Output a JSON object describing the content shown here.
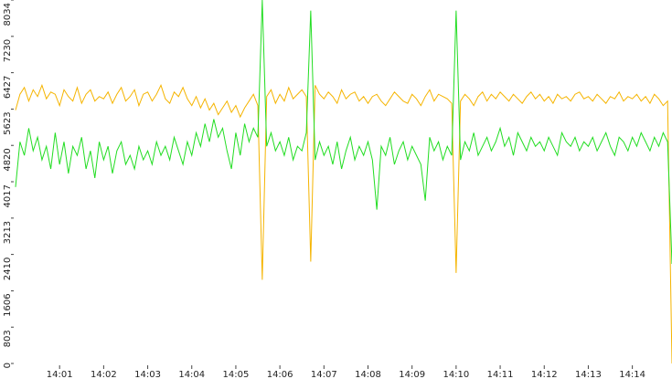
{
  "chart_data": {
    "type": "line",
    "x": [
      0,
      0.1,
      0.2,
      0.3,
      0.4,
      0.5,
      0.6,
      0.7,
      0.8,
      0.9,
      1,
      1.1,
      1.2,
      1.3,
      1.4,
      1.5,
      1.6,
      1.7,
      1.8,
      1.9,
      2,
      2.1,
      2.2,
      2.3,
      2.4,
      2.5,
      2.6,
      2.7,
      2.8,
      2.9,
      3,
      3.1,
      3.2,
      3.3,
      3.4,
      3.5,
      3.6,
      3.7,
      3.8,
      3.9,
      4,
      4.1,
      4.2,
      4.3,
      4.4,
      4.5,
      4.6,
      4.7,
      4.8,
      4.9,
      5,
      5.1,
      5.2,
      5.3,
      5.4,
      5.5,
      5.6,
      5.7,
      5.8,
      5.9,
      6,
      6.1,
      6.2,
      6.3,
      6.4,
      6.5,
      6.6,
      6.7,
      6.8,
      6.9,
      7,
      7.1,
      7.2,
      7.3,
      7.4,
      7.5,
      7.6,
      7.7,
      7.8,
      7.9,
      8,
      8.1,
      8.2,
      8.3,
      8.4,
      8.5,
      8.6,
      8.7,
      8.8,
      8.9,
      9,
      9.1,
      9.2,
      9.3,
      9.4,
      9.5,
      9.6,
      9.7,
      9.8,
      9.9,
      10,
      10.1,
      10.2,
      10.3,
      10.4,
      10.5,
      10.6,
      10.7,
      10.8,
      10.9,
      11,
      11.1,
      11.2,
      11.3,
      11.4,
      11.5,
      11.6,
      11.7,
      11.8,
      11.9,
      12,
      12.1,
      12.2,
      12.3,
      12.4,
      12.5,
      12.6,
      12.7,
      12.8,
      12.9,
      13,
      13.1,
      13.2,
      13.3,
      13.4,
      13.5,
      13.6,
      13.7,
      13.8,
      13.9,
      14,
      14.1,
      14.2,
      14.3,
      14.4,
      14.5,
      14.6,
      14.7,
      14.8,
      14.9
    ],
    "series": [
      {
        "color": "#f5b400",
        "values": [
          5600,
          5950,
          6100,
          5800,
          6050,
          5900,
          6150,
          5850,
          6000,
          5950,
          5700,
          6050,
          5900,
          5800,
          6100,
          5750,
          5950,
          6050,
          5800,
          5900,
          5850,
          6000,
          5750,
          5950,
          6100,
          5800,
          5900,
          6050,
          5700,
          5950,
          6000,
          5800,
          5950,
          6150,
          5850,
          5750,
          6000,
          5900,
          6100,
          5850,
          5700,
          5900,
          5650,
          5850,
          5600,
          5750,
          5500,
          5650,
          5800,
          5550,
          5700,
          5450,
          5650,
          5800,
          5950,
          5700,
          1850,
          5900,
          6050,
          5750,
          5950,
          5800,
          6100,
          5850,
          5950,
          6050,
          5900,
          2250,
          6150,
          5950,
          5850,
          6000,
          5900,
          5750,
          6050,
          5850,
          5950,
          6000,
          5800,
          5900,
          5750,
          5900,
          5950,
          5800,
          5700,
          5850,
          6000,
          5900,
          5800,
          5750,
          5950,
          5850,
          5700,
          5900,
          6050,
          5800,
          5950,
          5900,
          5850,
          5750,
          2000,
          5800,
          5950,
          5850,
          5700,
          5900,
          6000,
          5800,
          5950,
          5850,
          6000,
          5900,
          5800,
          5950,
          5850,
          5750,
          5900,
          6000,
          5850,
          5950,
          5800,
          5900,
          5750,
          5950,
          5850,
          5900,
          5800,
          5950,
          6000,
          5850,
          5900,
          5800,
          5950,
          5850,
          5750,
          5900,
          5850,
          6000,
          5800,
          5900,
          5850,
          5950,
          5800,
          5900,
          5750,
          5950,
          5850,
          5700,
          5800,
          0
        ]
      },
      {
        "color": "#22dd22",
        "values": [
          3900,
          4900,
          4600,
          5200,
          4700,
          5000,
          4500,
          4800,
          4300,
          5100,
          4400,
          4900,
          4200,
          4800,
          4600,
          5000,
          4300,
          4700,
          4100,
          4900,
          4500,
          4800,
          4200,
          4700,
          4900,
          4400,
          4600,
          4300,
          4800,
          4500,
          4700,
          4400,
          4900,
          4600,
          4800,
          4500,
          5000,
          4700,
          4400,
          4900,
          4600,
          5100,
          4800,
          5300,
          4900,
          5400,
          5000,
          5200,
          4700,
          4300,
          5100,
          4600,
          5300,
          4900,
          5200,
          5000,
          8034,
          4800,
          5100,
          4700,
          4900,
          4600,
          5000,
          4500,
          4800,
          4700,
          5100,
          7800,
          4500,
          4900,
          4600,
          4800,
          4400,
          4900,
          4300,
          4700,
          5000,
          4500,
          4800,
          4600,
          4900,
          4500,
          3400,
          4800,
          4600,
          5000,
          4400,
          4700,
          4900,
          4500,
          4800,
          4600,
          4400,
          3600,
          5000,
          4700,
          4900,
          4500,
          4800,
          4600,
          7800,
          4500,
          4900,
          4700,
          5100,
          4600,
          4800,
          5000,
          4700,
          4900,
          5200,
          4800,
          5000,
          4600,
          5100,
          4900,
          4700,
          5000,
          4800,
          4900,
          4700,
          5000,
          4800,
          4600,
          5100,
          4900,
          4800,
          5000,
          4700,
          4900,
          4800,
          5000,
          4700,
          4900,
          5100,
          4800,
          4600,
          5000,
          4900,
          4700,
          5000,
          4800,
          5100,
          4900,
          4700,
          5000,
          4800,
          5100,
          4900,
          2200
        ]
      }
    ],
    "xlim": [
      0,
      14.9
    ],
    "xticks": [
      {
        "value": 1,
        "label": "14:01"
      },
      {
        "value": 2,
        "label": "14:02"
      },
      {
        "value": 3,
        "label": "14:03"
      },
      {
        "value": 4,
        "label": "14:04"
      },
      {
        "value": 5,
        "label": "14:05"
      },
      {
        "value": 6,
        "label": "14:06"
      },
      {
        "value": 7,
        "label": "14:07"
      },
      {
        "value": 8,
        "label": "14:08"
      },
      {
        "value": 9,
        "label": "14:09"
      },
      {
        "value": 10,
        "label": "14:10"
      },
      {
        "value": 11,
        "label": "14:11"
      },
      {
        "value": 12,
        "label": "14:12"
      },
      {
        "value": 13,
        "label": "14:13"
      },
      {
        "value": 14,
        "label": "14:14"
      }
    ],
    "ylim": [
      0,
      8034
    ],
    "yticks": [
      0,
      803,
      1606,
      2410,
      3213,
      4017,
      4820,
      5623,
      6427,
      7230,
      8034
    ]
  }
}
